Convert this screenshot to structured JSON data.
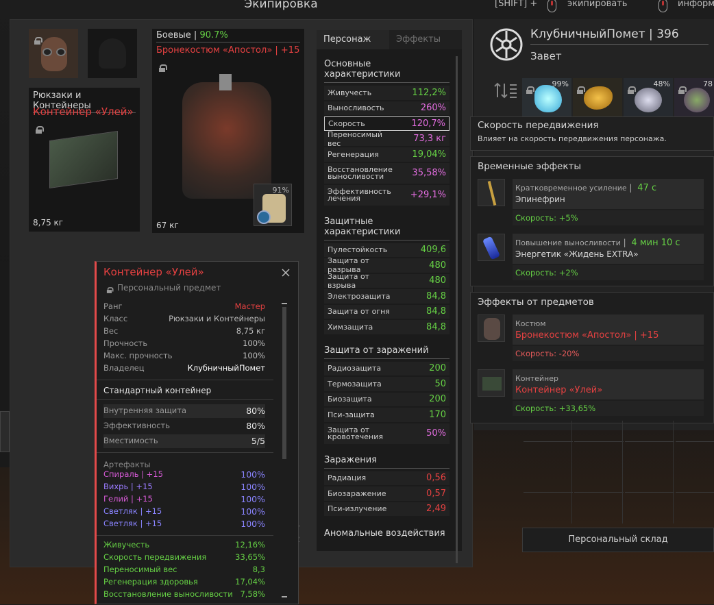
{
  "window": {
    "title": "Экипировка"
  },
  "hints": {
    "shift": "[SHIFT] +",
    "equip": "экипировать",
    "info": "информ"
  },
  "equipment": {
    "armor_category": "Боевые",
    "armor_sep": " | ",
    "armor_condition": "90.7%",
    "armor_name": "Бронекостюм «Апостол» | +15",
    "armor_weight": "67 кг",
    "badge_percent": "91%",
    "container_category": "Рюкзаки и Контейнеры",
    "container_name": "Контейнер «Улей»",
    "container_weight": "8,75 кг"
  },
  "stats": {
    "tabs": [
      "Персонаж",
      "Эффекты"
    ],
    "main_title": "Основные характеристики",
    "main": [
      {
        "label": "Живучесть",
        "value": "112,2%",
        "color": "#66d145"
      },
      {
        "label": "Выносливость",
        "value": "260%",
        "color": "#e36de0"
      },
      {
        "label": "Скорость",
        "value": "120,7%",
        "color": "#e36de0"
      },
      {
        "label": "Переносимый вес",
        "value": "73,3 кг",
        "color": "#e36de0"
      },
      {
        "label": "Регенерация",
        "value": "19,04%",
        "color": "#66d145"
      },
      {
        "label": "Восстановление выносливости",
        "value": "35,58%",
        "color": "#e36de0"
      },
      {
        "label": "Эффективность лечения",
        "value": "+29,1%",
        "color": "#e36de0"
      }
    ],
    "defense_title": "Защитные характеристики",
    "defense": [
      {
        "label": "Пулестойкость",
        "value": "409,6"
      },
      {
        "label": "Защита от разрыва",
        "value": "480"
      },
      {
        "label": "Защита от взрыва",
        "value": "480"
      },
      {
        "label": "Электрозащита",
        "value": "84,8"
      },
      {
        "label": "Защита от огня",
        "value": "84,8"
      },
      {
        "label": "Химзащита",
        "value": "84,8"
      }
    ],
    "infection_title": "Защита от заражений",
    "infection": [
      {
        "label": "Радиозащита",
        "value": "200",
        "color": "#66d145"
      },
      {
        "label": "Термозащита",
        "value": "50",
        "color": "#66d145"
      },
      {
        "label": "Биозащита",
        "value": "200",
        "color": "#66d145"
      },
      {
        "label": "Пси-защита",
        "value": "170",
        "color": "#66d145"
      },
      {
        "label": "Защита от кровотечения",
        "value": "50%",
        "color": "#e36de0"
      }
    ],
    "contamination_title": "Заражения",
    "contamination": [
      {
        "label": "Радиация",
        "value": "0,56"
      },
      {
        "label": "Биозаражение",
        "value": "0,57"
      },
      {
        "label": "Пси-излучение",
        "value": "2,49"
      }
    ],
    "anomaly_title": "Аномальные воздействия"
  },
  "player": {
    "name": "КлубничныйПомет",
    "sep": " | ",
    "level": "396",
    "faction": "Завет"
  },
  "artifact_slots": [
    "99%",
    "",
    "48%",
    "78"
  ],
  "tooltip_speed": {
    "title": "Скорость передвижения",
    "desc": "Влияет на скорость передвижения персонажа."
  },
  "temp_effects": {
    "title": "Временные эффекты",
    "items": [
      {
        "type": "Кратковременное усиление",
        "sep": " | ",
        "time": "47 с",
        "name": "Эпинефрин",
        "speed": "Скорость: +5%"
      },
      {
        "type": "Повышение выносливости",
        "sep": " | ",
        "time": "4 мин 10 с",
        "name": "Энергетик «Жидень EXTRA»",
        "speed": "Скорость: +2%"
      }
    ]
  },
  "item_effects": {
    "title": "Эффекты от предметов",
    "items": [
      {
        "type": "Костюм",
        "name": "Бронекостюм «Апостол» | +15",
        "speed": "Скорость: -20%",
        "speed_color": "#e55a5a"
      },
      {
        "type": "Контейнер",
        "name": "Контейнер «Улей»",
        "speed": "Скорость: +33,65%",
        "speed_color": "#66d145"
      }
    ]
  },
  "stash_button": "Персональный склад",
  "item_tooltip": {
    "name": "Контейнер «Улей»",
    "sub": "Персональный предмет",
    "props": [
      {
        "label": "Ранг",
        "value": "Мастер",
        "color": "#e54141"
      },
      {
        "label": "Класс",
        "value": "Рюкзаки и Контейнеры"
      },
      {
        "label": "Вес",
        "value": "8,75 кг"
      },
      {
        "label": "Прочность",
        "value": "100%"
      },
      {
        "label": "Макс. прочность",
        "value": "100%"
      },
      {
        "label": "Владелец",
        "value": "КлубничныйПомет",
        "color": "#ffffff"
      }
    ],
    "desc": "Стандартный контейнер",
    "container": [
      {
        "label": "Внутренняя защита",
        "value": "80%"
      },
      {
        "label": "Эффективность",
        "value": "80%"
      },
      {
        "label": "Вместимость",
        "value": "5/5"
      }
    ],
    "artifacts_title": "Артефакты",
    "artifacts": [
      {
        "label": "Спираль | +15",
        "value": "100%",
        "color": "#d65ad6"
      },
      {
        "label": "Вихрь | +15",
        "value": "100%",
        "color": "#9a7bff"
      },
      {
        "label": "Гелий | +15",
        "value": "100%",
        "color": "#d65ad6"
      },
      {
        "label": "Светляк | +15",
        "value": "100%",
        "color": "#8a84ff"
      },
      {
        "label": "Светляк | +15",
        "value": "100%",
        "color": "#8a84ff"
      }
    ],
    "bonuses": [
      {
        "label": "Живучесть",
        "value": "12,16%"
      },
      {
        "label": "Скорость передвижения",
        "value": "33,65%"
      },
      {
        "label": "Переносимый вес",
        "value": "8,3"
      },
      {
        "label": "Регенерация здоровья",
        "value": "17,04%"
      },
      {
        "label": "Восстановление выносливости",
        "value": "7,58%"
      }
    ]
  },
  "bg_fragments": {
    "a": "7",
    "b": "2"
  }
}
